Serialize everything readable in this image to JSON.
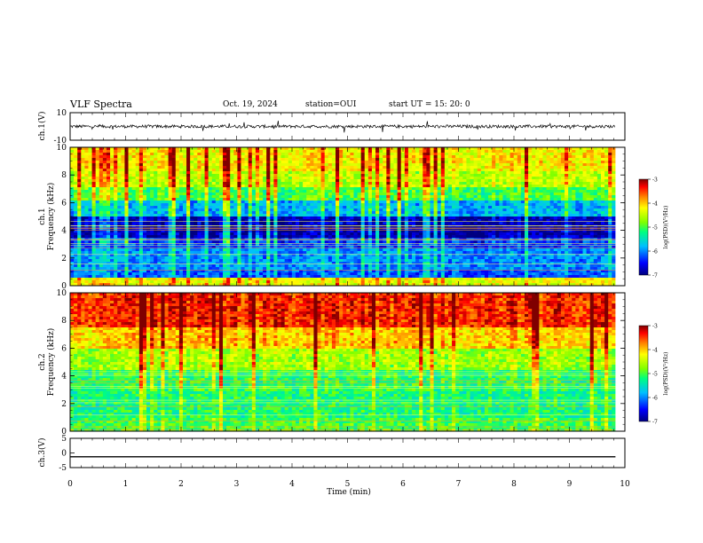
{
  "header": {
    "title": "VLF Spectra",
    "date": "Oct. 19, 2024",
    "station": "station=OUI",
    "start": "start UT =  15: 20: 0"
  },
  "chart_data": [
    {
      "type": "line",
      "id": "ch1-waveform",
      "ylabel": "ch.1(V)",
      "ylim": [
        -10,
        10
      ],
      "y_ticks": [
        "10",
        "-10"
      ],
      "xlim": [
        0,
        10
      ],
      "baseline": 0,
      "note_series": "dense noisy waveform centered near 0 V with amplitude about ±2 V"
    },
    {
      "type": "heatmap",
      "id": "ch1-spectrogram",
      "ylabel": "ch.1\nFrequency (kHz)",
      "ylabel_lines": [
        "ch.1",
        "Frequency (kHz)"
      ],
      "y_ticks": [
        "0",
        "2",
        "4",
        "6",
        "8",
        "10"
      ],
      "ylim": [
        0,
        10
      ],
      "xlim": [
        0,
        9.83
      ],
      "colorbar": {
        "label": "log(PSD)(V²/Hz)",
        "ticks": [
          "-3",
          "-4",
          "-5",
          "-6",
          "-7"
        ],
        "range": [
          -7,
          -3
        ]
      },
      "bands_kHz_level": [
        [
          0,
          0.5,
          -4.3
        ],
        [
          0.5,
          1.2,
          -6.2
        ],
        [
          1.2,
          2.6,
          -6.0
        ],
        [
          2.6,
          3.4,
          -6.3
        ],
        [
          3.4,
          5.0,
          -6.8
        ],
        [
          5.0,
          6.2,
          -5.8
        ],
        [
          6.2,
          7.2,
          -5.0
        ],
        [
          7.2,
          8.2,
          -4.5
        ],
        [
          8.2,
          10,
          -4.2
        ]
      ]
    },
    {
      "type": "heatmap",
      "id": "ch2-spectrogram",
      "ylabel": "ch.2\nFrequency (kHz)",
      "ylabel_lines": [
        "ch.2",
        "Frequency (kHz)"
      ],
      "y_ticks": [
        "0",
        "2",
        "4",
        "6",
        "8",
        "10"
      ],
      "ylim": [
        0,
        10
      ],
      "xlim": [
        0,
        9.83
      ],
      "colorbar": {
        "label": "log(PSD)(V²/Hz)",
        "ticks": [
          "-3",
          "-4",
          "-5",
          "-6",
          "-7"
        ],
        "range": [
          -7,
          -3
        ]
      },
      "bands_kHz_level": [
        [
          0,
          1.0,
          -5.0
        ],
        [
          1.0,
          2.8,
          -5.2
        ],
        [
          2.8,
          4.5,
          -5.1
        ],
        [
          4.5,
          6.0,
          -4.6
        ],
        [
          6.0,
          7.5,
          -4.0
        ],
        [
          7.5,
          10,
          -3.4
        ]
      ]
    },
    {
      "type": "line",
      "id": "ch3-waveform",
      "ylabel": "ch.3(V)",
      "ylim": [
        -5,
        5
      ],
      "y_ticks": [
        "5",
        "0",
        "-5"
      ],
      "xlim": [
        0,
        10
      ],
      "x": [
        0,
        9.83
      ],
      "y": [
        -1.3,
        -1.3
      ]
    }
  ],
  "xaxis": {
    "label": "Time (min)",
    "ticks": [
      "0",
      "1",
      "2",
      "3",
      "4",
      "5",
      "6",
      "7",
      "8",
      "9",
      "10"
    ],
    "xlim": [
      0,
      10
    ]
  },
  "colors": {
    "colormap": [
      "#00007f",
      "#0000ff",
      "#00bfff",
      "#00ff7f",
      "#7fff00",
      "#ffff00",
      "#ff7f00",
      "#ff0000",
      "#7f0000"
    ]
  }
}
